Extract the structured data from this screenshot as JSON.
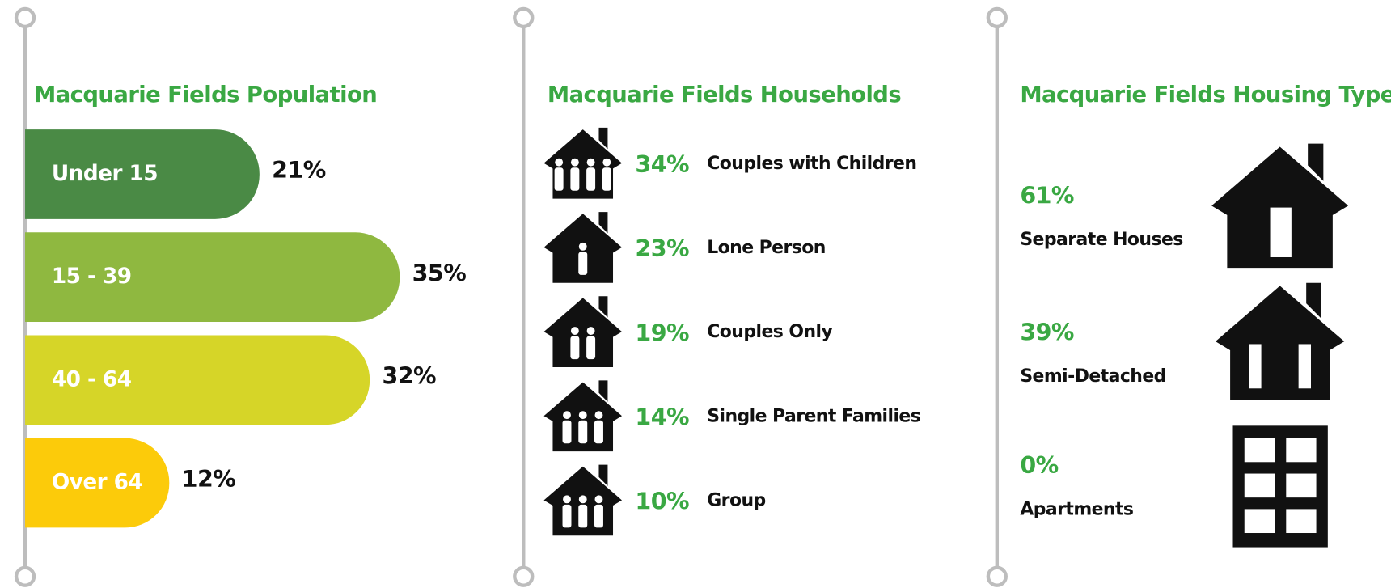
{
  "population": {
    "title": "Macquarie Fields Population",
    "categories": [
      "Under 15",
      "15 - 39",
      "40 - 64",
      "Over 64"
    ],
    "values": [
      21,
      35,
      32,
      12
    ],
    "value_labels": [
      "21%",
      "35%",
      "32%",
      "12%"
    ],
    "colors": [
      "#4a8a45",
      "#8fb840",
      "#d6d528",
      "#fccb0a"
    ]
  },
  "households": {
    "title": "Macquarie Fields Households",
    "items": [
      {
        "label": "Couples with Children",
        "value": 34,
        "value_label": "34%"
      },
      {
        "label": "Lone Person",
        "value": 23,
        "value_label": "23%"
      },
      {
        "label": "Couples Only",
        "value": 19,
        "value_label": "19%"
      },
      {
        "label": "Single Parent Families",
        "value": 14,
        "value_label": "14%"
      },
      {
        "label": "Group",
        "value": 10,
        "value_label": "10%"
      }
    ]
  },
  "housing": {
    "title": "Macquarie Fields Housing Type",
    "items": [
      {
        "label": "Separate Houses",
        "value": 61,
        "value_label": "61%"
      },
      {
        "label": "Semi-Detached",
        "value": 39,
        "value_label": "39%"
      },
      {
        "label": "Apartments",
        "value": 0,
        "value_label": "0%"
      }
    ]
  }
}
